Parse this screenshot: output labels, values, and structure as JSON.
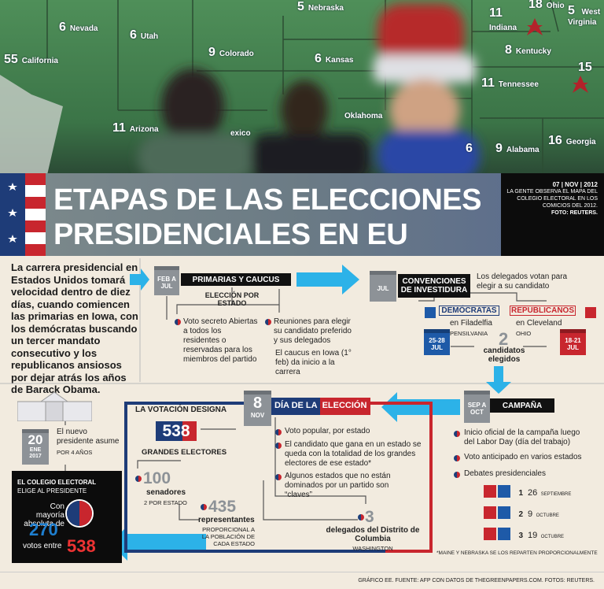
{
  "photo": {
    "map_labels": [
      {
        "number": "6",
        "state": "Nevada"
      },
      {
        "number": "55",
        "state": "California"
      },
      {
        "number": "6",
        "state": "Utah"
      },
      {
        "number": "9",
        "state": "Colorado"
      },
      {
        "number": "5",
        "state": "Nebraska"
      },
      {
        "number": "6",
        "state": "Kansas"
      },
      {
        "number": "11",
        "state": "Arizona"
      },
      {
        "state": "exico"
      },
      {
        "state": "Oklahoma"
      },
      {
        "number": "11",
        "state": "Indiana"
      },
      {
        "number": "18",
        "state": "Ohio"
      },
      {
        "number": "5",
        "state": "West Virginia"
      },
      {
        "number": "8",
        "state": "Kentucky"
      },
      {
        "number": "11",
        "state": "Tennessee"
      },
      {
        "number": "15"
      },
      {
        "number": "9",
        "state": "Alabama"
      },
      {
        "number": "16",
        "state": "Georgia"
      },
      {
        "number": "6"
      }
    ]
  },
  "header": {
    "title_line1": "ETAPAS DE LAS ELECCIONES",
    "title_line2": "PRESIDENCIALES EN EU",
    "date": "07 | NOV | 2012",
    "caption": "LA GENTE OBSERVA EL MAPA DEL COLEGIO ELECTORAL EN LOS COMICIOS DEL 2012.",
    "credit": "FOTO: REUTERS."
  },
  "intro": "La carrera presidencial en Estados Unidos tomará velocidad dentro de diez días, cuando comiencen las primarias en Iowa, con los demócratas buscando un tercer mandato consecutivo y los republicanos ansiosos por dejar atrás los años de Barack Obama.",
  "primaries": {
    "calendar": "FEB A JUL",
    "label": "PRIMARIAS Y CAUCUS",
    "subtitle": "ELECCIÓN POR ESTADO",
    "left": "Voto secreto Abiertas a todos los residentes o reservadas para los miembros del partido",
    "right": "Reuniones para elegir su candidato preferido y sus delegados",
    "right_note": "El caucus en Iowa (1° feb) da inicio a la carrera"
  },
  "conventions": {
    "calendar": "JUL",
    "label": "CONVENCIONES DE INVESTIDURA",
    "intro": "Los delegados votan para elegir a su candidato",
    "dem_label": "DEMÓCRATAS",
    "dem_city": "en Filadelfia",
    "dem_state": "PENSILVANIA",
    "dem_dates": "25-28 JUL",
    "rep_label": "REPUBLICANOS",
    "rep_city": "en Cleveland",
    "rep_state": "OHIO",
    "rep_dates": "18-21 JUL",
    "count": "2",
    "count_label": "candidatos elegidos"
  },
  "campaign": {
    "calendar": "SEP A OCT",
    "label": "CAMPAÑA",
    "bullets": [
      "Inicio oficial de la campaña luego del Labor Day (día del trabajo)",
      "Voto anticipado en varios estados",
      "Debates presidenciales"
    ],
    "debates": [
      {
        "number": "1",
        "day": "26",
        "month": "SEPTIEMBRE"
      },
      {
        "number": "2",
        "day": "9",
        "month": "OCTUBRE"
      },
      {
        "number": "3",
        "day": "19",
        "month": "OCTUBRE"
      }
    ]
  },
  "election": {
    "calendar_day": "8",
    "calendar_month": "NOV",
    "label_a": "DÍA DE LA",
    "label_b": "ELECCIÓN",
    "bullets": [
      "Voto popular, por estado",
      "El candidato que gana en un estado se queda con la totalidad de los grandes electores de ese estado*",
      "Algunos estados que no están dominados por un partido son “claves”"
    ],
    "designates": "LA VOTACIÓN DESIGNA",
    "electors_count": "538",
    "electors_label": "GRANDES ELECTORES",
    "senators_count": "100",
    "senators_label": "senadores",
    "senators_note": "2 POR ESTADO",
    "reps_count": "435",
    "reps_label": "representantes",
    "reps_note": "PROPORCIONAL A LA POBLACIÓN DE CADA ESTADO",
    "dc_count": "3",
    "dc_label": "delegados del Distrito de Columbia",
    "dc_note": "WASHINGTON",
    "footnote": "*MAINE Y NEBRASKA SE LOS REPARTEN PROPORCIONALMENTE"
  },
  "inauguration": {
    "day": "20",
    "month": "ENE",
    "year": "2017",
    "text": "El nuevo presidente asume",
    "note": "POR 4 AÑOS"
  },
  "college": {
    "title": "EL COLEGIO ELECTORAL",
    "subtitle": "ELIGE AL PRESIDENTE",
    "text_a": "Con mayoría absoluta de",
    "majority": "270",
    "text_b": "votos entre",
    "total": "538"
  },
  "footer": "GRÁFICO EE. FUENTE: AFP CON DATOS DE THEGREENPAPERS.COM. FOTOS: REUTERS."
}
